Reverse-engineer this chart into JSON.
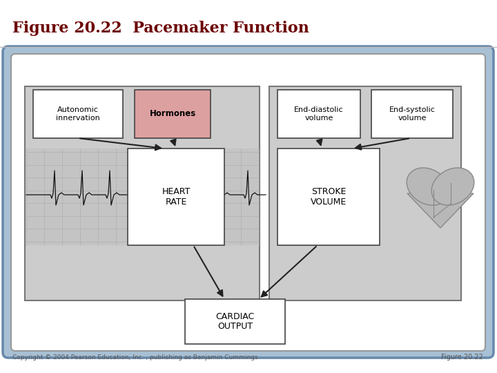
{
  "title": "Figure 20.22  Pacemaker Function",
  "title_color": "#6b0000",
  "title_fontsize": 16,
  "copyright_text": "Copyright © 2004 Pearson Education, Inc. , publishing as Benjamin Cummings",
  "figure_label": "Figure 20.22",
  "bg_outer_color": "#a0b8d0",
  "bg_inner_color": "#ffffff",
  "left_panel_color": "#d0d0d0",
  "right_panel_color": "#d0d0d0",
  "ecg_bg_color": "#c8c8c8",
  "hormones_color": "#dda0a0",
  "white_box_color": "#ffffff",
  "box_edge_color": "#444444",
  "arrow_color": "#222222"
}
